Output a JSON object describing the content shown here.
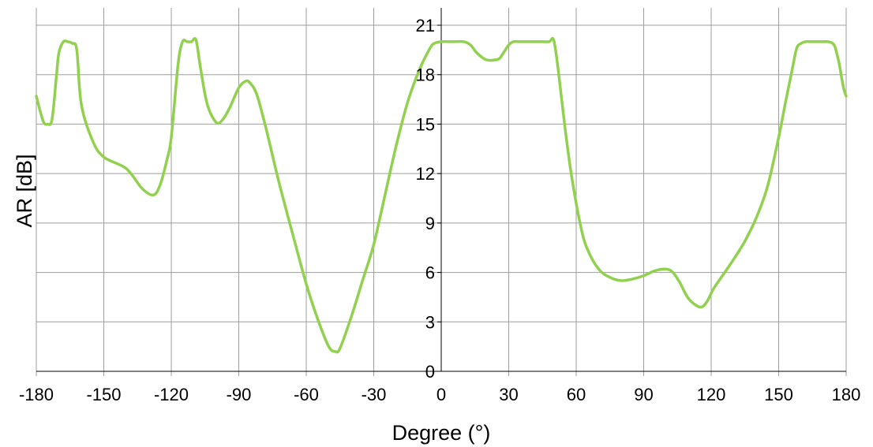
{
  "chart_data": {
    "type": "line",
    "xlabel": "Degree (°)",
    "ylabel": "AR [dB]",
    "xlim": [
      -180,
      180
    ],
    "ylim": [
      0,
      21
    ],
    "xticks": [
      "-180",
      "-150",
      "-120",
      "-90",
      "-60",
      "-30",
      "0",
      "30",
      "60",
      "90",
      "120",
      "150",
      "180"
    ],
    "yticks": [
      "0",
      "3",
      "6",
      "9",
      "12",
      "15",
      "18",
      "21"
    ],
    "grid": true,
    "line_color": "#92d050",
    "series": [
      {
        "x": [
          -180,
          -177,
          -175,
          -173,
          -171,
          -170,
          -168,
          -166,
          -164,
          -162,
          -160,
          -155,
          -150,
          -140,
          -133,
          -128,
          -125,
          -122,
          -120,
          -117,
          -115,
          -113,
          -111,
          -109,
          -107,
          -104,
          -100,
          -97,
          -94,
          -90,
          -87,
          -85,
          -82,
          -78,
          -72,
          -65,
          -60,
          -55,
          -50,
          -47,
          -45,
          -40,
          -35,
          -30,
          -25,
          -20,
          -15,
          -10,
          -5,
          -3,
          0,
          5,
          10,
          13,
          16,
          20,
          24,
          26,
          28,
          30,
          32,
          35,
          40,
          45,
          48,
          50,
          52,
          55,
          58,
          62,
          65,
          70,
          75,
          80,
          85,
          90,
          95,
          100,
          103,
          106,
          110,
          115,
          118,
          121,
          125,
          130,
          135,
          140,
          145,
          150,
          153,
          156,
          158,
          160,
          162,
          164,
          166,
          168,
          170,
          172,
          174,
          175,
          176,
          177,
          178,
          179,
          180
        ],
        "y": [
          16.7,
          15.2,
          15.0,
          15.3,
          18.0,
          19.3,
          20.0,
          20.0,
          19.9,
          19.5,
          16.2,
          14.0,
          13.0,
          12.3,
          11.1,
          10.7,
          11.3,
          12.8,
          14.2,
          18.6,
          20.0,
          20.0,
          20.0,
          20.1,
          18.4,
          16.2,
          15.1,
          15.3,
          16.0,
          17.2,
          17.6,
          17.5,
          16.8,
          14.8,
          11.4,
          7.8,
          5.3,
          3.2,
          1.5,
          1.2,
          1.4,
          3.3,
          5.5,
          7.7,
          10.7,
          13.7,
          16.3,
          18.2,
          19.6,
          19.9,
          20.0,
          20.0,
          20.0,
          19.8,
          19.3,
          18.9,
          18.9,
          19.0,
          19.4,
          19.8,
          20.0,
          20.0,
          20.0,
          20.0,
          20.0,
          20.1,
          18.3,
          14.8,
          11.8,
          8.8,
          7.4,
          6.2,
          5.7,
          5.5,
          5.6,
          5.8,
          6.1,
          6.2,
          6.0,
          5.4,
          4.4,
          3.9,
          4.2,
          5.0,
          5.8,
          6.8,
          7.9,
          9.3,
          11.2,
          14.2,
          16.3,
          18.3,
          19.6,
          19.9,
          20.0,
          20.0,
          20.0,
          20.0,
          20.0,
          20.0,
          19.9,
          19.7,
          19.2,
          18.6,
          17.8,
          17.1,
          16.7
        ]
      }
    ]
  }
}
